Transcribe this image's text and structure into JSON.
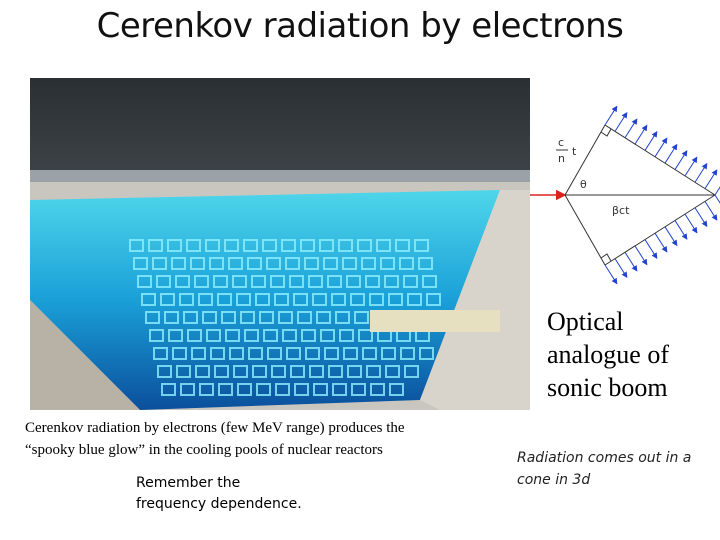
{
  "title": "Cerenkov radiation by electrons",
  "photo_caption": [
    "Cerenkov radiation by electrons (few MeV range) produces the",
    "“spooky blue glow” in the cooling pools of nuclear reactors"
  ],
  "note": [
    "Remember the",
    "frequency dependence."
  ],
  "diagram": {
    "c": "c",
    "n": "n",
    "t": "t",
    "theta": "θ",
    "distance": "βct"
  },
  "side_text": [
    "Optical",
    "analogue of",
    "sonic boom"
  ],
  "cone_note": [
    "Radiation comes out in a",
    "cone in 3d"
  ]
}
